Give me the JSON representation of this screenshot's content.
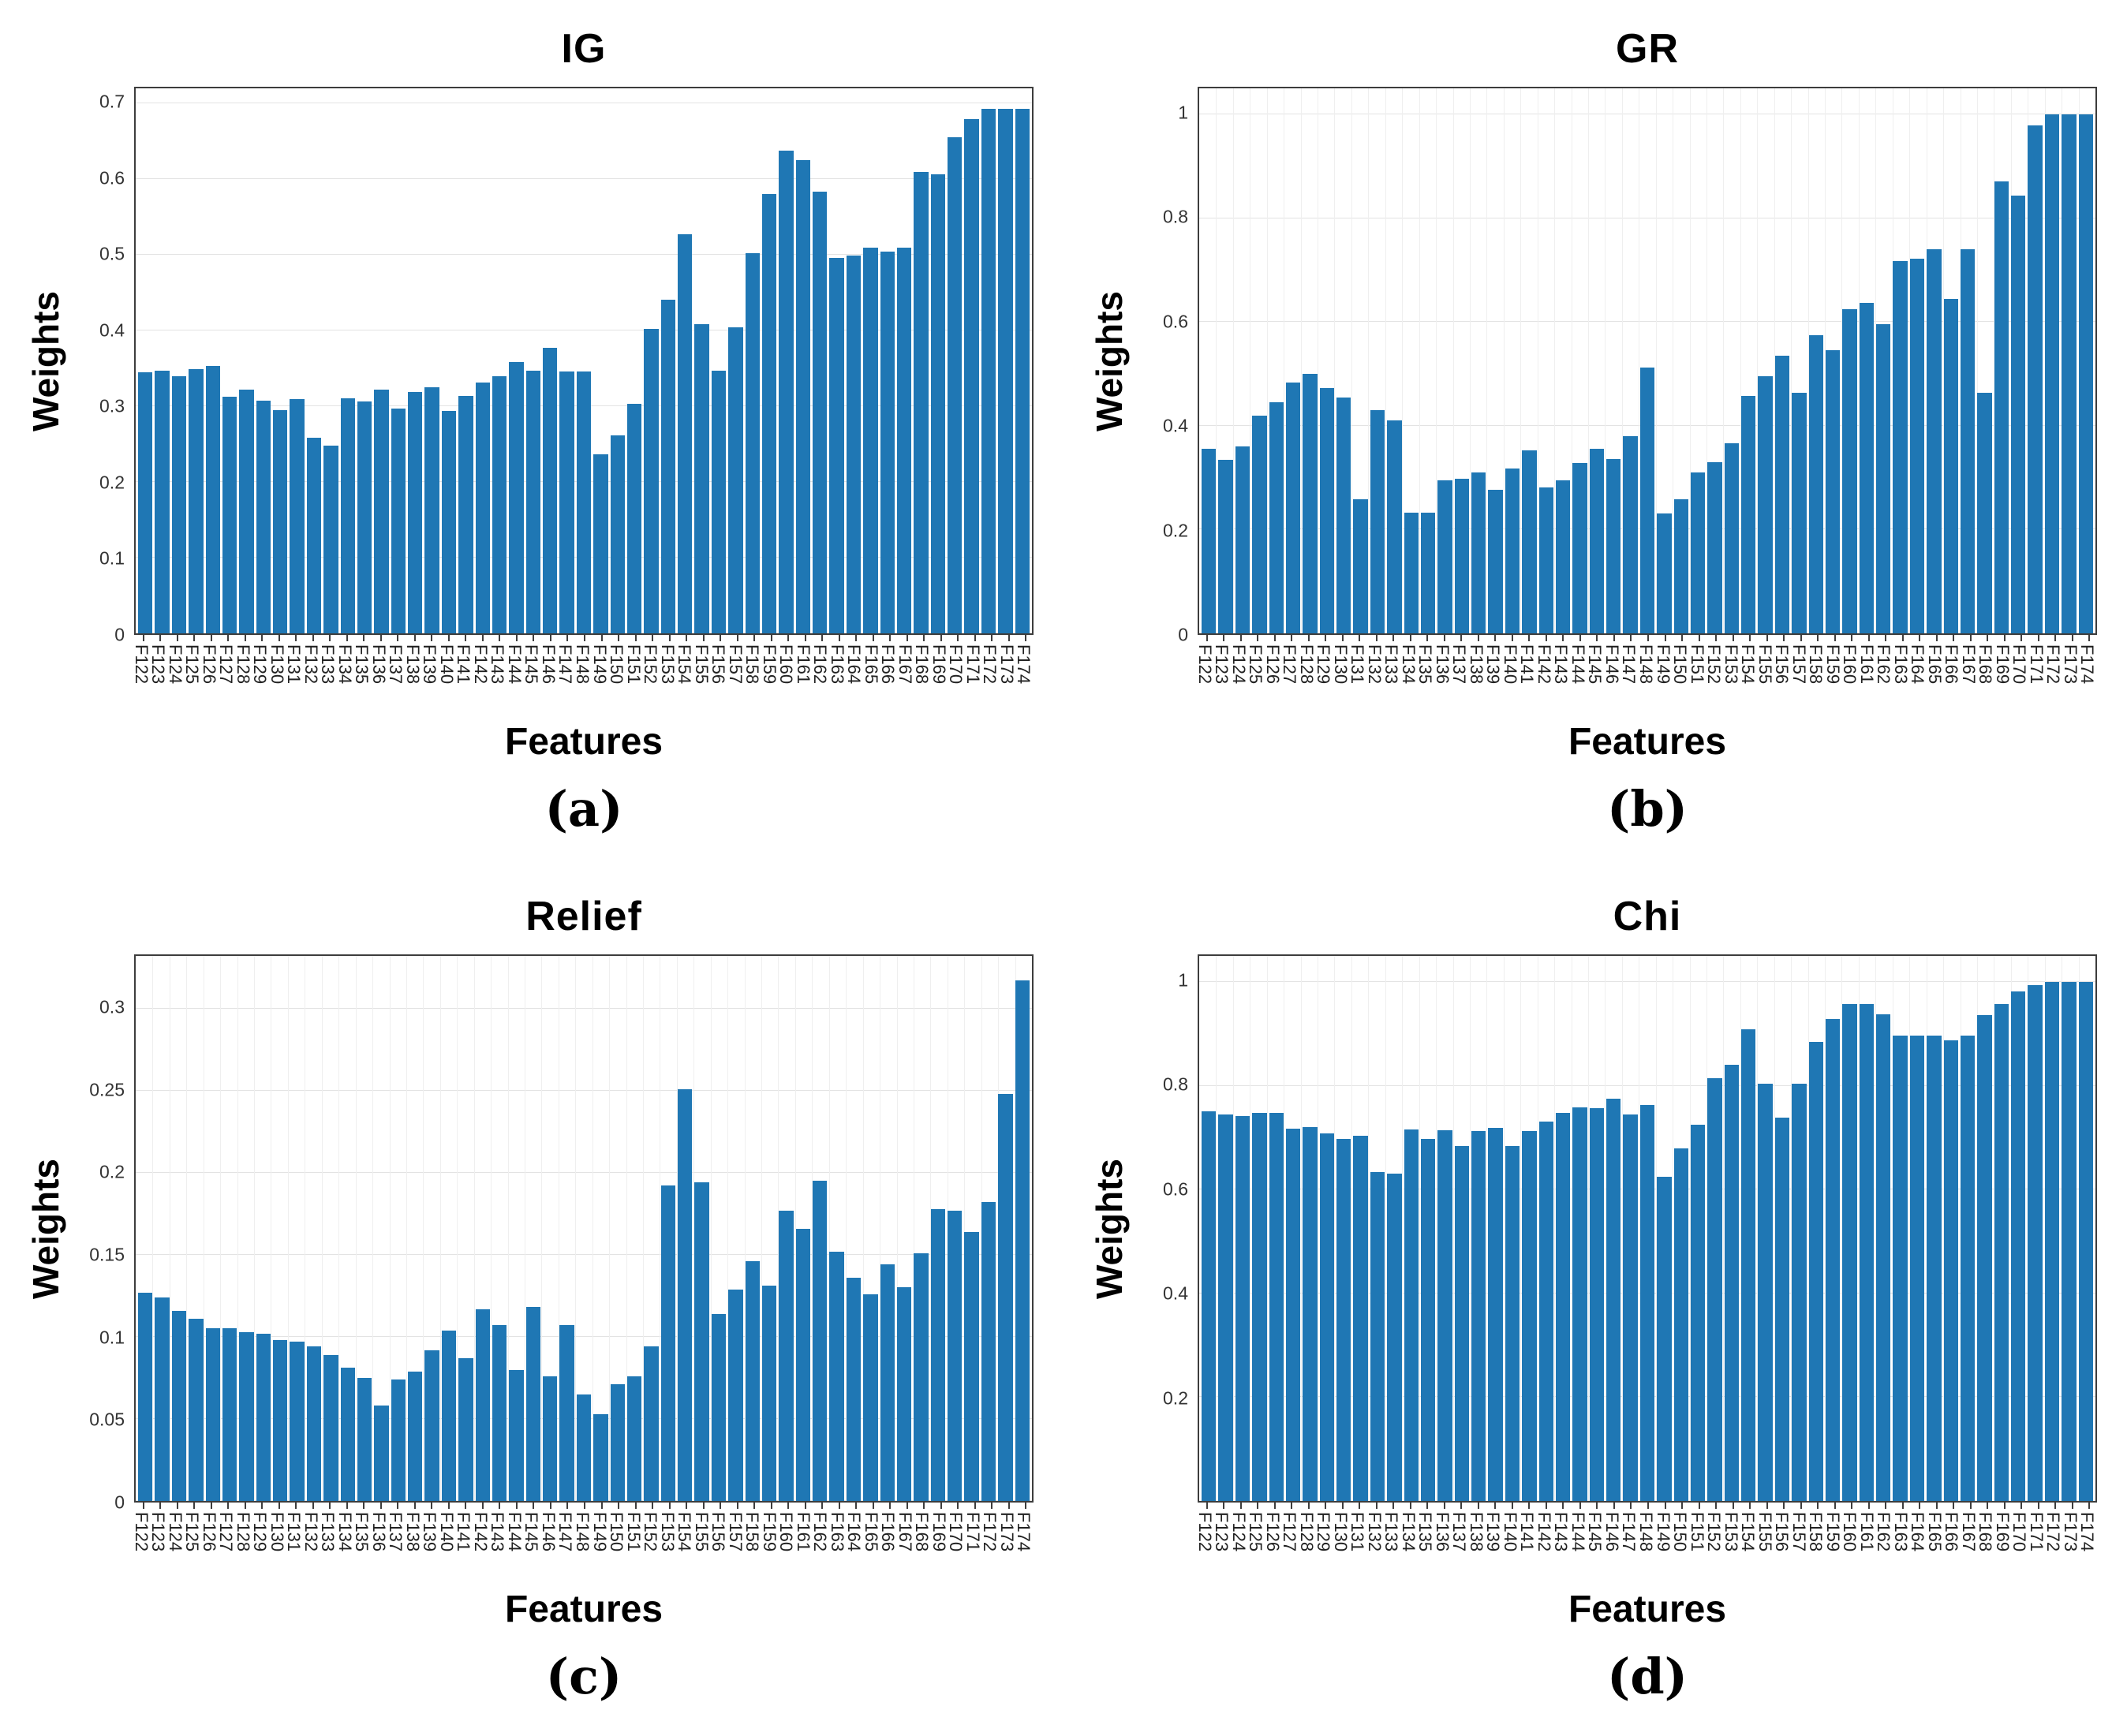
{
  "colors": {
    "bar": "#1f77b4",
    "hgrid": "#e3e3e3",
    "vgrid": "#efefef",
    "axis": "#3d3d3d"
  },
  "chart_data": [
    {
      "id": "a",
      "type": "bar",
      "title": "IG",
      "xlabel": "Features",
      "ylabel": "Weights",
      "caption": "(a)",
      "legend": null,
      "grid_horizontal": true,
      "grid_vertical": false,
      "ylim": [
        0,
        0.72
      ],
      "yticks": [
        {
          "v": 0,
          "label": "0"
        },
        {
          "v": 0.1,
          "label": "0.1"
        },
        {
          "v": 0.2,
          "label": "0.2"
        },
        {
          "v": 0.3,
          "label": "0.3"
        },
        {
          "v": 0.4,
          "label": "0.4"
        },
        {
          "v": 0.5,
          "label": "0.5"
        },
        {
          "v": 0.6,
          "label": "0.6"
        },
        {
          "v": 0.7,
          "label": "0.7"
        }
      ],
      "categories": [
        "F122",
        "F123",
        "F124",
        "F125",
        "F126",
        "F127",
        "F128",
        "F129",
        "F130",
        "F131",
        "F132",
        "F133",
        "F134",
        "F135",
        "F136",
        "F137",
        "F138",
        "F139",
        "F140",
        "F141",
        "F142",
        "F143",
        "F144",
        "F145",
        "F146",
        "F147",
        "F148",
        "F149",
        "F150",
        "F151",
        "F152",
        "F153",
        "F154",
        "F155",
        "F156",
        "F157",
        "F158",
        "F159",
        "F160",
        "F161",
        "F162",
        "F163",
        "F164",
        "F165",
        "F166",
        "F167",
        "F168",
        "F169",
        "F170",
        "F171",
        "F172",
        "F173",
        "F174"
      ],
      "values": [
        0.345,
        0.347,
        0.34,
        0.349,
        0.353,
        0.313,
        0.322,
        0.307,
        0.295,
        0.31,
        0.258,
        0.248,
        0.311,
        0.306,
        0.322,
        0.297,
        0.319,
        0.325,
        0.294,
        0.314,
        0.331,
        0.34,
        0.358,
        0.347,
        0.377,
        0.346,
        0.346,
        0.237,
        0.262,
        0.303,
        0.402,
        0.441,
        0.527,
        0.408,
        0.347,
        0.404,
        0.502,
        0.58,
        0.638,
        0.625,
        0.583,
        0.496,
        0.499,
        0.51,
        0.504,
        0.51,
        0.61,
        0.606,
        0.655,
        0.679,
        0.693,
        0.693,
        0.693
      ]
    },
    {
      "id": "b",
      "type": "bar",
      "title": "GR",
      "xlabel": "Features",
      "ylabel": "Weights",
      "caption": "(b)",
      "legend": null,
      "grid_horizontal": true,
      "grid_vertical": true,
      "ylim": [
        0,
        1.05
      ],
      "yticks": [
        {
          "v": 0,
          "label": "0"
        },
        {
          "v": 0.2,
          "label": "0.2"
        },
        {
          "v": 0.4,
          "label": "0.4"
        },
        {
          "v": 0.6,
          "label": "0.6"
        },
        {
          "v": 0.8,
          "label": "0.8"
        },
        {
          "v": 1,
          "label": "1"
        }
      ],
      "categories": [
        "F122",
        "F123",
        "F124",
        "F125",
        "F126",
        "F127",
        "F128",
        "F129",
        "F130",
        "F131",
        "F132",
        "F133",
        "F134",
        "F135",
        "F136",
        "F137",
        "F138",
        "F139",
        "F140",
        "F141",
        "F142",
        "F143",
        "F144",
        "F145",
        "F146",
        "F147",
        "F148",
        "F149",
        "F150",
        "F151",
        "F152",
        "F153",
        "F154",
        "F155",
        "F156",
        "F157",
        "F158",
        "F159",
        "F160",
        "F161",
        "F162",
        "F163",
        "F164",
        "F165",
        "F166",
        "F167",
        "F168",
        "F169",
        "F170",
        "F171",
        "F172",
        "F173",
        "F174"
      ],
      "values": [
        0.355,
        0.335,
        0.36,
        0.42,
        0.445,
        0.483,
        0.5,
        0.473,
        0.455,
        0.258,
        0.43,
        0.411,
        0.232,
        0.232,
        0.295,
        0.298,
        0.31,
        0.277,
        0.318,
        0.352,
        0.281,
        0.295,
        0.328,
        0.355,
        0.336,
        0.38,
        0.512,
        0.231,
        0.258,
        0.31,
        0.33,
        0.366,
        0.457,
        0.496,
        0.535,
        0.463,
        0.575,
        0.546,
        0.625,
        0.637,
        0.595,
        0.718,
        0.722,
        0.74,
        0.645,
        0.74,
        0.463,
        0.87,
        0.843,
        0.978,
        1.0,
        1.0,
        1.0
      ]
    },
    {
      "id": "c",
      "type": "bar",
      "title": "Relief",
      "xlabel": "Features",
      "ylabel": "Weights",
      "caption": "(c)",
      "legend": null,
      "grid_horizontal": true,
      "grid_vertical": true,
      "ylim": [
        0,
        0.332
      ],
      "yticks": [
        {
          "v": 0,
          "label": "0"
        },
        {
          "v": 0.05,
          "label": "0.05"
        },
        {
          "v": 0.1,
          "label": "0.1"
        },
        {
          "v": 0.15,
          "label": "0.15"
        },
        {
          "v": 0.2,
          "label": "0.2"
        },
        {
          "v": 0.25,
          "label": "0.25"
        },
        {
          "v": 0.3,
          "label": "0.3"
        }
      ],
      "categories": [
        "F122",
        "F123",
        "F124",
        "F125",
        "F126",
        "F127",
        "F128",
        "F129",
        "F130",
        "F131",
        "F132",
        "F133",
        "F134",
        "F135",
        "F136",
        "F137",
        "F138",
        "F139",
        "F140",
        "F141",
        "F142",
        "F143",
        "F144",
        "F145",
        "F146",
        "F147",
        "F148",
        "F149",
        "F150",
        "F151",
        "F152",
        "F153",
        "F154",
        "F155",
        "F156",
        "F157",
        "F158",
        "F159",
        "F160",
        "F161",
        "F162",
        "F163",
        "F164",
        "F165",
        "F166",
        "F167",
        "F168",
        "F169",
        "F170",
        "F171",
        "F172",
        "F173",
        "F174"
      ],
      "values": [
        0.127,
        0.124,
        0.116,
        0.111,
        0.105,
        0.105,
        0.103,
        0.102,
        0.098,
        0.097,
        0.094,
        0.089,
        0.081,
        0.075,
        0.058,
        0.074,
        0.079,
        0.092,
        0.104,
        0.087,
        0.117,
        0.107,
        0.08,
        0.118,
        0.076,
        0.107,
        0.065,
        0.053,
        0.071,
        0.076,
        0.094,
        0.192,
        0.251,
        0.194,
        0.114,
        0.129,
        0.146,
        0.131,
        0.177,
        0.166,
        0.195,
        0.152,
        0.136,
        0.126,
        0.144,
        0.13,
        0.151,
        0.178,
        0.177,
        0.164,
        0.182,
        0.248,
        0.317
      ]
    },
    {
      "id": "d",
      "type": "bar",
      "title": "Chi",
      "xlabel": "Features",
      "ylabel": "Weights",
      "caption": "(d)",
      "legend": null,
      "grid_horizontal": true,
      "grid_vertical": true,
      "ylim": [
        0,
        1.05
      ],
      "yticks": [
        {
          "v": 0.2,
          "label": "0.2"
        },
        {
          "v": 0.4,
          "label": "0.4"
        },
        {
          "v": 0.6,
          "label": "0.6"
        },
        {
          "v": 0.8,
          "label": "0.8"
        },
        {
          "v": 1,
          "label": "1"
        }
      ],
      "categories": [
        "F122",
        "F123",
        "F124",
        "F125",
        "F126",
        "F127",
        "F128",
        "F129",
        "F130",
        "F131",
        "F132",
        "F133",
        "F134",
        "F135",
        "F136",
        "F137",
        "F138",
        "F139",
        "F140",
        "F141",
        "F142",
        "F143",
        "F144",
        "F145",
        "F146",
        "F147",
        "F148",
        "F149",
        "F150",
        "F151",
        "F152",
        "F153",
        "F154",
        "F155",
        "F156",
        "F157",
        "F158",
        "F159",
        "F160",
        "F161",
        "F162",
        "F163",
        "F164",
        "F165",
        "F166",
        "F167",
        "F168",
        "F169",
        "F170",
        "F171",
        "F172",
        "F173",
        "F174"
      ],
      "values": [
        0.75,
        0.745,
        0.742,
        0.747,
        0.747,
        0.718,
        0.721,
        0.708,
        0.698,
        0.703,
        0.634,
        0.63,
        0.716,
        0.697,
        0.714,
        0.684,
        0.712,
        0.719,
        0.684,
        0.712,
        0.731,
        0.748,
        0.758,
        0.757,
        0.775,
        0.745,
        0.763,
        0.625,
        0.68,
        0.725,
        0.815,
        0.84,
        0.908,
        0.804,
        0.738,
        0.804,
        0.884,
        0.929,
        0.958,
        0.958,
        0.937,
        0.896,
        0.896,
        0.897,
        0.887,
        0.897,
        0.936,
        0.958,
        0.982,
        0.994,
        1.0,
        1.0,
        1.0
      ]
    }
  ]
}
